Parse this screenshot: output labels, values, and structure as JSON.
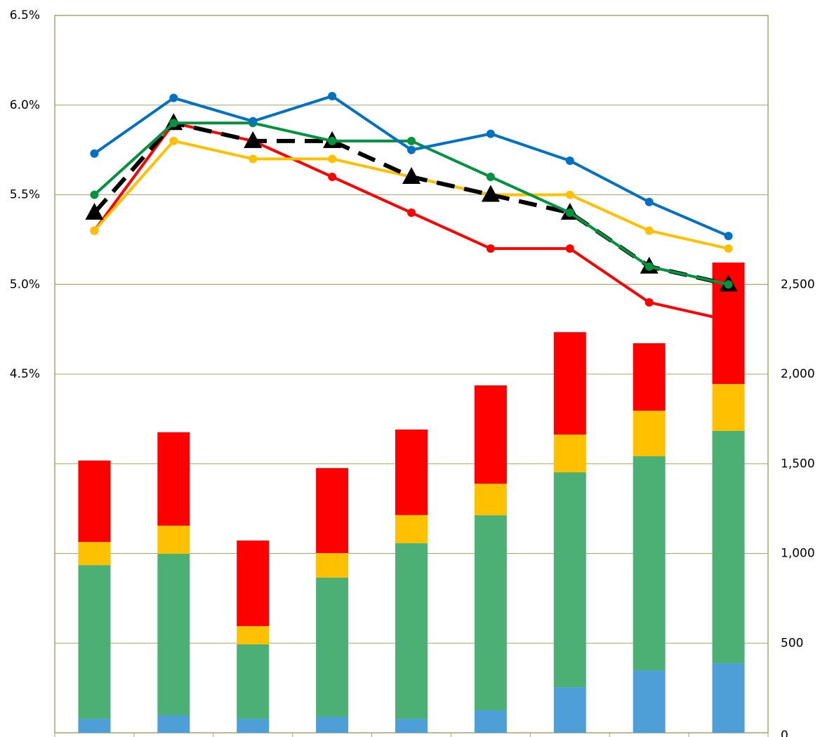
{
  "chart_data": {
    "type": "bar",
    "categories": [
      null,
      null,
      null,
      null,
      null,
      null,
      null,
      null,
      null
    ],
    "ylim": [
      2.5,
      6.5
    ],
    "yticks": [
      {
        "value": 4.5,
        "label": "4.5%"
      },
      {
        "value": 5.0,
        "label": "5.0%"
      },
      {
        "value": 5.5,
        "label": "5.5%"
      },
      {
        "value": 6.0,
        "label": "6.0%"
      },
      {
        "value": 6.5,
        "label": "6.5%"
      }
    ],
    "y2lim": [
      0,
      4000
    ],
    "y2ticks": [
      0,
      500,
      {
        "value": 1000,
        "label": "1,000"
      },
      {
        "value": 1500,
        "label": "1,500"
      },
      {
        "value": 2000,
        "label": "2,000"
      },
      {
        "value": 2500,
        "label": "2,500"
      }
    ],
    "grid": true,
    "stacked": true,
    "series": [
      {
        "type": "bar",
        "axis": "y2",
        "color": "#4e9fd8",
        "values": [
          78,
          98,
          78,
          90,
          78,
          125,
          254,
          348,
          387
        ]
      },
      {
        "type": "bar",
        "axis": "y2",
        "color": "#4caf74",
        "values": [
          857,
          900,
          415,
          775,
          979,
          1088,
          1198,
          1194,
          1296
        ]
      },
      {
        "type": "bar",
        "axis": "y2",
        "color": "#ffc000",
        "values": [
          129,
          157,
          102,
          137,
          157,
          176,
          211,
          254,
          262
        ]
      },
      {
        "type": "bar",
        "axis": "y2",
        "color": "#ff0000",
        "values": [
          454,
          521,
          477,
          474,
          477,
          548,
          571,
          376,
          677
        ]
      },
      {
        "type": "line",
        "color": "#ff0000",
        "marker": "circle",
        "values": [
          5.3,
          5.9,
          5.8,
          5.6,
          5.4,
          5.2,
          5.2,
          4.9,
          4.8
        ]
      },
      {
        "type": "line",
        "color": "#ffc000",
        "marker": "circle",
        "values": [
          5.3,
          5.8,
          5.7,
          5.7,
          5.6,
          5.5,
          5.5,
          5.3,
          5.2
        ]
      },
      {
        "type": "line",
        "color": "#000000",
        "marker": "triangle",
        "dashed": true,
        "values": [
          5.4,
          5.9,
          5.8,
          5.8,
          5.6,
          5.5,
          5.4,
          5.1,
          5.0
        ]
      },
      {
        "type": "line",
        "color": "#00923f",
        "marker": "circle",
        "values": [
          5.5,
          5.9,
          5.9,
          5.8,
          5.8,
          5.6,
          5.4,
          5.1,
          5.0
        ]
      },
      {
        "type": "line",
        "color": "#0070c0",
        "marker": "circle",
        "values": [
          5.73,
          6.04,
          5.91,
          6.05,
          5.75,
          5.84,
          5.69,
          5.46,
          5.27
        ]
      }
    ]
  }
}
